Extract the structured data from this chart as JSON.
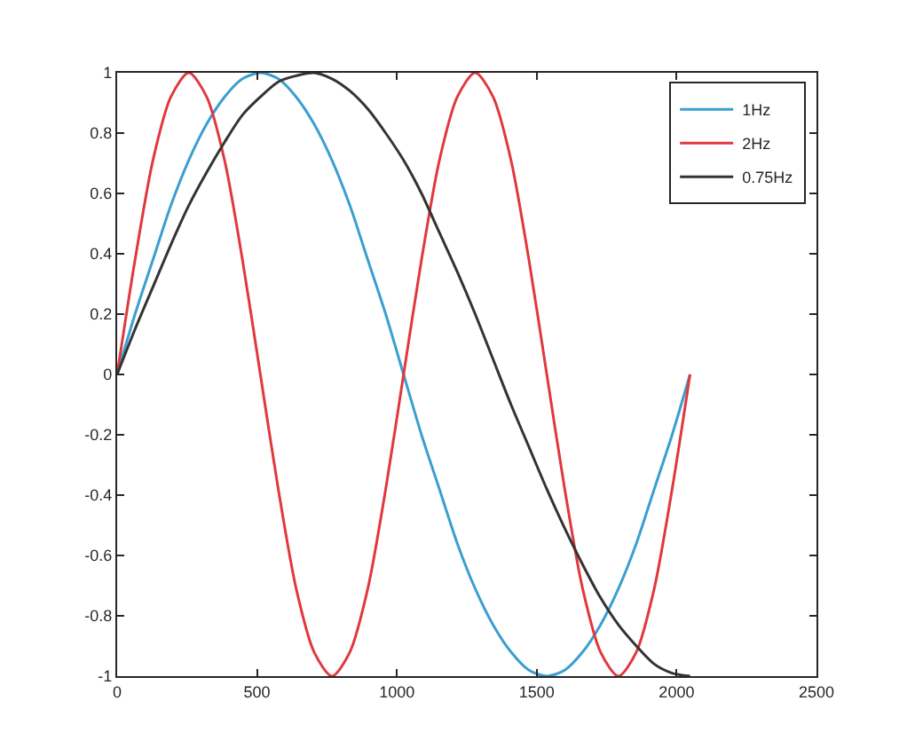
{
  "chart_data": {
    "type": "line",
    "x": [
      0,
      64,
      128,
      192,
      256,
      320,
      384,
      448,
      512,
      576,
      640,
      704,
      768,
      832,
      896,
      960,
      1024,
      1088,
      1152,
      1216,
      1280,
      1344,
      1408,
      1472,
      1536,
      1600,
      1664,
      1728,
      1792,
      1856,
      1920,
      1984,
      2048
    ],
    "series": [
      {
        "name": "1Hz",
        "color": "#3a9fd0",
        "values": [
          0,
          0.2,
          0.38,
          0.56,
          0.71,
          0.83,
          0.92,
          0.98,
          1,
          0.98,
          0.92,
          0.83,
          0.71,
          0.56,
          0.38,
          0.2,
          0,
          -0.2,
          -0.38,
          -0.56,
          -0.71,
          -0.83,
          -0.92,
          -0.98,
          -1,
          -0.98,
          -0.92,
          -0.83,
          -0.71,
          -0.56,
          -0.38,
          -0.2,
          0
        ]
      },
      {
        "name": "2Hz",
        "color": "#e0383f",
        "values": [
          0,
          0.38,
          0.71,
          0.92,
          1,
          0.92,
          0.71,
          0.38,
          0,
          -0.38,
          -0.71,
          -0.92,
          -1,
          -0.92,
          -0.71,
          -0.38,
          0,
          0.38,
          0.71,
          0.92,
          1,
          0.92,
          0.71,
          0.38,
          0,
          -0.38,
          -0.71,
          -0.92,
          -1,
          -0.92,
          -0.71,
          -0.38,
          0
        ]
      },
      {
        "name": "0.75Hz",
        "color": "#333333",
        "values": [
          0,
          0.15,
          0.29,
          0.43,
          0.56,
          0.67,
          0.77,
          0.86,
          0.92,
          0.97,
          0.99,
          1,
          0.98,
          0.94,
          0.88,
          0.8,
          0.71,
          0.6,
          0.47,
          0.34,
          0.2,
          0.05,
          -0.1,
          -0.24,
          -0.38,
          -0.51,
          -0.63,
          -0.74,
          -0.83,
          -0.9,
          -0.96,
          -0.99,
          -1
        ]
      }
    ],
    "xlim": [
      0,
      2500
    ],
    "xticks": [
      0,
      500,
      1000,
      1500,
      2000,
      2500
    ],
    "ylim": [
      -1,
      1
    ],
    "yticks": [
      -1,
      -0.8,
      -0.6,
      -0.4,
      -0.2,
      0,
      0.2,
      0.4,
      0.6,
      0.8,
      1
    ],
    "legend": "top right",
    "marker": "none",
    "line_style": "solid"
  }
}
